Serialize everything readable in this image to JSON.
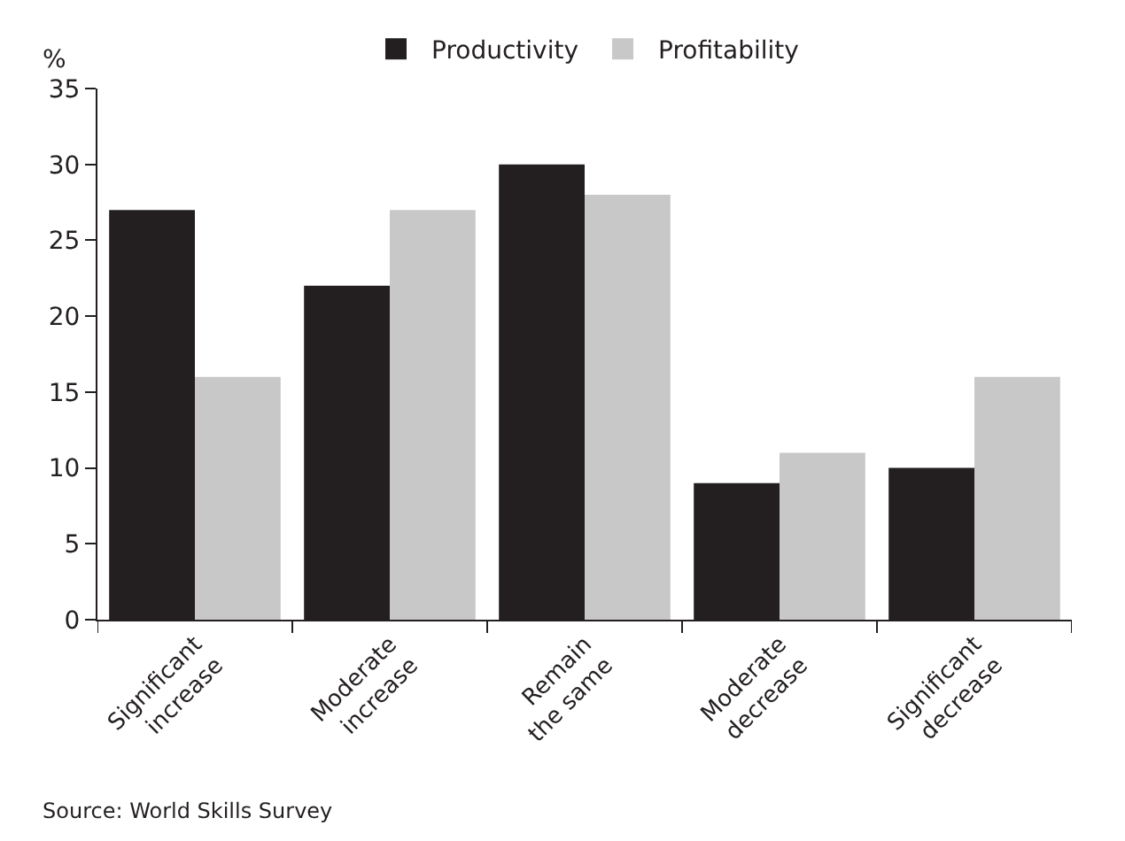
{
  "chart_data": {
    "type": "bar",
    "categories": [
      "Significant\nincrease",
      "Moderate\nincrease",
      "Remain\nthe same",
      "Moderate\ndecrease",
      "Significant\ndecrease"
    ],
    "series": [
      {
        "name": "Productivity",
        "color": "#231f20",
        "values": [
          27,
          22,
          30,
          9,
          10
        ]
      },
      {
        "name": "Profitability",
        "color": "#c8c8c8",
        "values": [
          16,
          27,
          28,
          11,
          16
        ]
      }
    ],
    "ylabel": "%",
    "ylim": [
      0,
      35
    ],
    "yticks": [
      0,
      5,
      10,
      15,
      20,
      25,
      30,
      35
    ],
    "legend": "top",
    "annotations": [
      "Source: World Skills Survey"
    ]
  }
}
